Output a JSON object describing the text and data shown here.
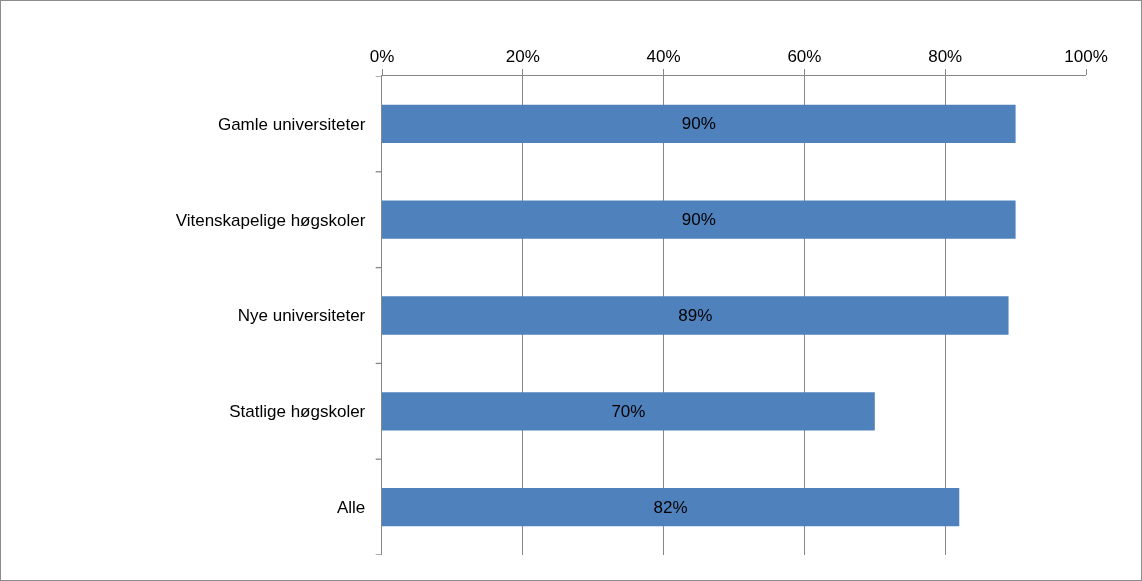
{
  "chart_data": {
    "type": "bar",
    "orientation": "horizontal",
    "categories": [
      "Gamle universiteter",
      "Vitenskapelige høgskoler",
      "Nye universiteter",
      "Statlige høgskoler",
      "Alle"
    ],
    "values": [
      90,
      90,
      89,
      70,
      82
    ],
    "value_labels": [
      "90%",
      "90%",
      "89%",
      "70%",
      "82%"
    ],
    "color": "#4f81bd",
    "xlim": [
      0,
      100
    ],
    "xticks": [
      {
        "value": 0,
        "label": "0%"
      },
      {
        "value": 20,
        "label": "20%"
      },
      {
        "value": 40,
        "label": "40%"
      },
      {
        "value": 60,
        "label": "60%"
      },
      {
        "value": 80,
        "label": "80%"
      },
      {
        "value": 100,
        "label": "100%"
      }
    ],
    "grid": "x"
  }
}
